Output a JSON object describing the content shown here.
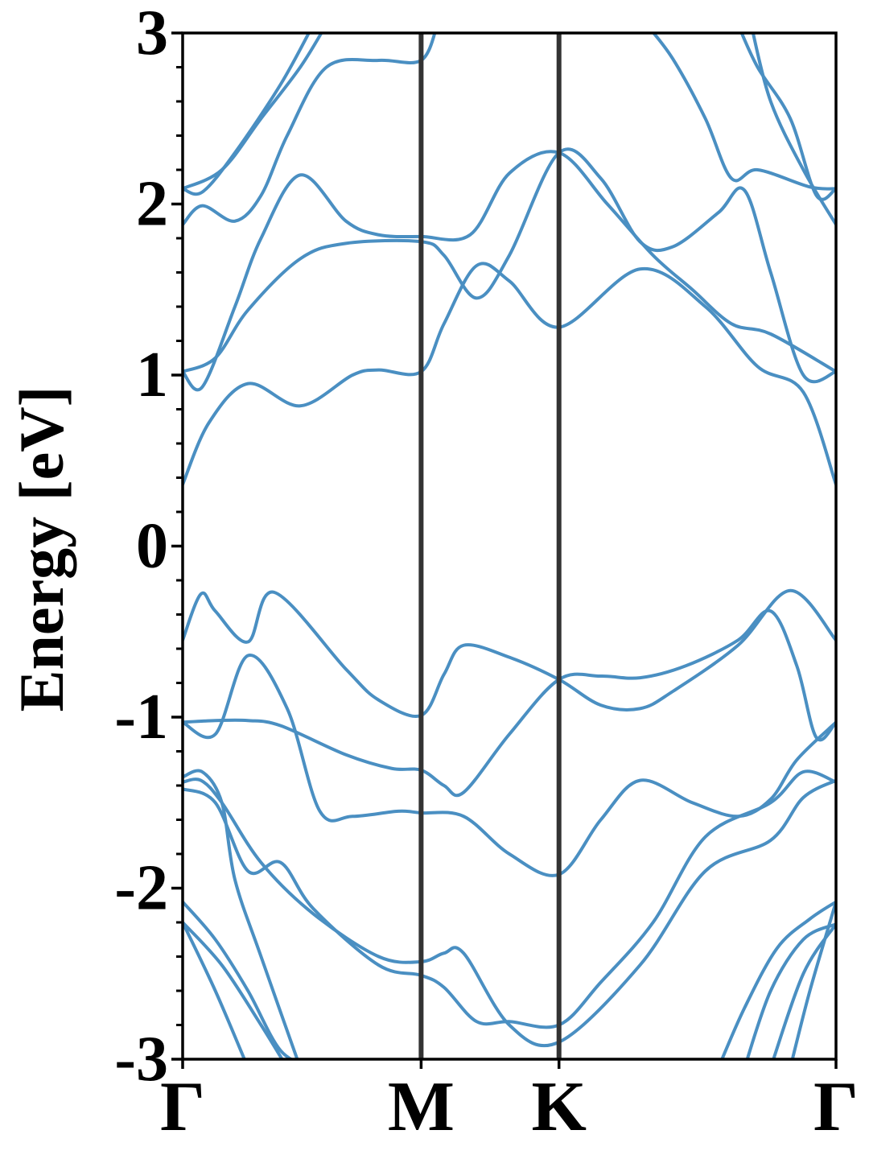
{
  "chart_data": {
    "type": "line",
    "ylabel": "Energy [eV]",
    "xlabel": "",
    "ylim": [
      -3,
      3
    ],
    "yticks": [
      "-3",
      "-2",
      "-1",
      "0",
      "1",
      "2",
      "3"
    ],
    "x_ticks": [
      {
        "label": "Γ",
        "k": 0.0
      },
      {
        "label": "M",
        "k": 0.365
      },
      {
        "label": "K",
        "k": 0.576
      },
      {
        "label": "Γ",
        "k": 1.0
      }
    ],
    "grid": false,
    "line_color": "#4a8fc2",
    "divider_color": "#333333",
    "series": [
      {
        "values": [
          [
            0,
            -0.55
          ],
          [
            0.028,
            -0.28
          ],
          [
            0.05,
            -0.38
          ],
          [
            0.1,
            -0.56
          ],
          [
            0.14,
            -0.27
          ],
          [
            0.25,
            -0.72
          ],
          [
            0.3,
            -0.9
          ],
          [
            0.365,
            -0.99
          ],
          [
            0.4,
            -0.75
          ],
          [
            0.43,
            -0.58
          ],
          [
            0.5,
            -0.65
          ],
          [
            0.576,
            -0.78
          ],
          [
            0.64,
            -0.93
          ],
          [
            0.7,
            -0.95
          ],
          [
            0.75,
            -0.85
          ],
          [
            0.85,
            -0.58
          ],
          [
            0.93,
            -0.26
          ],
          [
            1.0,
            -0.55
          ]
        ]
      },
      {
        "values": [
          [
            0,
            -1.03
          ],
          [
            0.05,
            -1.1
          ],
          [
            0.1,
            -0.64
          ],
          [
            0.16,
            -0.95
          ],
          [
            0.21,
            -1.55
          ],
          [
            0.26,
            -1.58
          ],
          [
            0.33,
            -1.55
          ],
          [
            0.365,
            -1.56
          ],
          [
            0.43,
            -1.58
          ],
          [
            0.5,
            -1.8
          ],
          [
            0.576,
            -1.92
          ],
          [
            0.64,
            -1.6
          ],
          [
            0.7,
            -1.37
          ],
          [
            0.78,
            -1.5
          ],
          [
            0.85,
            -1.58
          ],
          [
            0.9,
            -1.48
          ],
          [
            0.94,
            -1.25
          ],
          [
            1.0,
            -1.03
          ]
        ]
      },
      {
        "values": [
          [
            0,
            -1.03
          ],
          [
            0.05,
            -1.02
          ],
          [
            0.1,
            -1.02
          ],
          [
            0.15,
            -1.05
          ],
          [
            0.25,
            -1.22
          ],
          [
            0.32,
            -1.3
          ],
          [
            0.365,
            -1.31
          ],
          [
            0.4,
            -1.4
          ],
          [
            0.43,
            -1.44
          ],
          [
            0.5,
            -1.1
          ],
          [
            0.576,
            -0.78
          ],
          [
            0.64,
            -0.76
          ],
          [
            0.7,
            -0.77
          ],
          [
            0.77,
            -0.7
          ],
          [
            0.85,
            -0.55
          ],
          [
            0.9,
            -0.38
          ],
          [
            0.94,
            -0.7
          ],
          [
            0.97,
            -1.12
          ],
          [
            1.0,
            -1.03
          ]
        ]
      },
      {
        "values": [
          [
            0,
            -1.38
          ],
          [
            0.028,
            -1.37
          ],
          [
            0.06,
            -1.5
          ],
          [
            0.12,
            -1.85
          ],
          [
            0.2,
            -2.15
          ],
          [
            0.3,
            -2.4
          ],
          [
            0.365,
            -2.43
          ],
          [
            0.4,
            -2.38
          ],
          [
            0.43,
            -2.38
          ],
          [
            0.5,
            -2.8
          ],
          [
            0.576,
            -2.9
          ],
          [
            0.7,
            -2.45
          ],
          [
            0.8,
            -1.9
          ],
          [
            0.9,
            -1.72
          ],
          [
            0.95,
            -1.47
          ],
          [
            1.0,
            -1.37
          ]
        ]
      },
      {
        "values": [
          [
            0,
            -1.42
          ],
          [
            0.05,
            -1.5
          ],
          [
            0.1,
            -1.9
          ],
          [
            0.15,
            -1.85
          ],
          [
            0.2,
            -2.12
          ],
          [
            0.3,
            -2.45
          ],
          [
            0.365,
            -2.51
          ],
          [
            0.4,
            -2.58
          ],
          [
            0.45,
            -2.78
          ],
          [
            0.5,
            -2.78
          ],
          [
            0.576,
            -2.8
          ],
          [
            0.64,
            -2.55
          ],
          [
            0.72,
            -2.2
          ],
          [
            0.8,
            -1.7
          ],
          [
            0.9,
            -1.5
          ],
          [
            0.95,
            -1.32
          ],
          [
            1.0,
            -1.38
          ]
        ]
      },
      {
        "values": [
          [
            0,
            -1.35
          ],
          [
            0.03,
            -1.32
          ],
          [
            0.06,
            -1.5
          ],
          [
            0.08,
            -1.95
          ],
          [
            0.12,
            -2.4
          ],
          [
            0.18,
            -3.05
          ]
        ]
      },
      {
        "values": [
          [
            0,
            -2.08
          ],
          [
            0.05,
            -2.3
          ],
          [
            0.1,
            -2.6
          ],
          [
            0.15,
            -2.95
          ],
          [
            0.2,
            -3.05
          ]
        ]
      },
      {
        "values": [
          [
            0,
            -2.2
          ],
          [
            0.06,
            -2.45
          ],
          [
            0.12,
            -2.8
          ],
          [
            0.16,
            -3.05
          ]
        ]
      },
      {
        "values": [
          [
            0,
            -2.2
          ],
          [
            0.05,
            -2.6
          ],
          [
            0.1,
            -3.05
          ]
        ]
      },
      {
        "values": [
          [
            0.82,
            -3.05
          ],
          [
            0.86,
            -2.7
          ],
          [
            0.91,
            -2.35
          ],
          [
            0.96,
            -2.18
          ],
          [
            1.0,
            -2.08
          ]
        ]
      },
      {
        "values": [
          [
            0.86,
            -3.05
          ],
          [
            0.9,
            -2.6
          ],
          [
            0.95,
            -2.3
          ],
          [
            1.0,
            -2.21
          ]
        ]
      },
      {
        "values": [
          [
            0.9,
            -3.05
          ],
          [
            0.95,
            -2.5
          ],
          [
            1.0,
            -2.21
          ]
        ]
      },
      {
        "values": [
          [
            0.93,
            -3.05
          ],
          [
            0.96,
            -2.6
          ],
          [
            1.0,
            -2.08
          ]
        ]
      },
      {
        "values": [
          [
            0,
            0.36
          ],
          [
            0.04,
            0.72
          ],
          [
            0.1,
            0.95
          ],
          [
            0.18,
            0.82
          ],
          [
            0.26,
            1.0
          ],
          [
            0.3,
            1.03
          ],
          [
            0.365,
            1.02
          ],
          [
            0.4,
            1.3
          ],
          [
            0.45,
            1.64
          ],
          [
            0.5,
            1.55
          ],
          [
            0.576,
            1.28
          ],
          [
            0.7,
            1.62
          ],
          [
            0.8,
            1.4
          ],
          [
            0.88,
            1.05
          ],
          [
            0.95,
            0.9
          ],
          [
            1.0,
            0.36
          ]
        ]
      },
      {
        "values": [
          [
            0,
            1.02
          ],
          [
            0.05,
            1.1
          ],
          [
            0.1,
            1.38
          ],
          [
            0.18,
            1.68
          ],
          [
            0.25,
            1.77
          ],
          [
            0.365,
            1.78
          ],
          [
            0.4,
            1.7
          ],
          [
            0.45,
            1.45
          ],
          [
            0.5,
            1.7
          ],
          [
            0.576,
            2.3
          ],
          [
            0.64,
            2.15
          ],
          [
            0.7,
            1.78
          ],
          [
            0.75,
            1.75
          ],
          [
            0.82,
            1.95
          ],
          [
            0.86,
            2.08
          ],
          [
            0.9,
            1.6
          ],
          [
            0.95,
            1.0
          ],
          [
            1.0,
            1.02
          ]
        ]
      },
      {
        "values": [
          [
            0,
            1.02
          ],
          [
            0.03,
            0.93
          ],
          [
            0.08,
            1.4
          ],
          [
            0.12,
            1.8
          ],
          [
            0.18,
            2.17
          ],
          [
            0.25,
            1.9
          ],
          [
            0.3,
            1.82
          ],
          [
            0.365,
            1.81
          ],
          [
            0.44,
            1.82
          ],
          [
            0.5,
            2.18
          ],
          [
            0.576,
            2.3
          ],
          [
            0.65,
            2.0
          ],
          [
            0.72,
            1.7
          ],
          [
            0.78,
            1.5
          ],
          [
            0.84,
            1.3
          ],
          [
            0.9,
            1.24
          ],
          [
            1.0,
            1.02
          ]
        ]
      },
      {
        "values": [
          [
            0,
            1.88
          ],
          [
            0.03,
            1.99
          ],
          [
            0.08,
            1.9
          ],
          [
            0.12,
            2.05
          ],
          [
            0.16,
            2.4
          ],
          [
            0.22,
            2.8
          ],
          [
            0.3,
            2.84
          ],
          [
            0.365,
            2.84
          ],
          [
            0.39,
            3.05
          ]
        ]
      },
      {
        "values": [
          [
            0,
            2.09
          ],
          [
            0.03,
            2.07
          ],
          [
            0.08,
            2.3
          ],
          [
            0.15,
            2.7
          ],
          [
            0.2,
            3.05
          ]
        ]
      },
      {
        "values": [
          [
            0,
            2.09
          ],
          [
            0.06,
            2.2
          ],
          [
            0.12,
            2.5
          ],
          [
            0.18,
            2.8
          ],
          [
            0.22,
            3.05
          ]
        ]
      },
      {
        "values": [
          [
            0.71,
            3.05
          ],
          [
            0.75,
            2.85
          ],
          [
            0.8,
            2.5
          ],
          [
            0.84,
            2.15
          ],
          [
            0.88,
            2.2
          ],
          [
            0.96,
            2.1
          ],
          [
            1.0,
            2.09
          ]
        ]
      },
      {
        "values": [
          [
            0.85,
            3.05
          ],
          [
            0.88,
            2.8
          ],
          [
            0.93,
            2.5
          ],
          [
            0.97,
            2.05
          ],
          [
            1.0,
            2.09
          ]
        ]
      },
      {
        "values": [
          [
            0.87,
            3.05
          ],
          [
            0.9,
            2.6
          ],
          [
            0.95,
            2.2
          ],
          [
            1.0,
            1.88
          ]
        ]
      }
    ]
  }
}
